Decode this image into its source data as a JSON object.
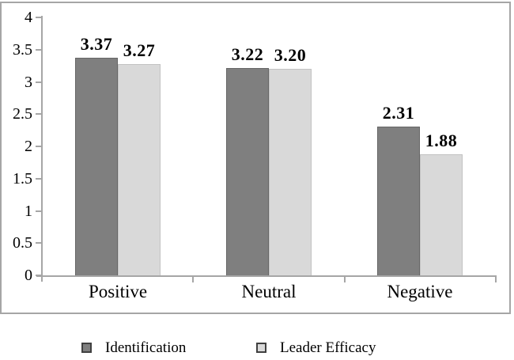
{
  "chart_data": {
    "type": "bar",
    "title": "",
    "xlabel": "",
    "ylabel": "",
    "categories": [
      "Positive",
      "Neutral",
      "Negative"
    ],
    "series": [
      {
        "name": "Identification",
        "values": [
          3.37,
          3.22,
          2.31
        ],
        "value_labels": [
          "3.37",
          "3.22",
          "2.31"
        ],
        "color": "#7f7f7f",
        "border_color": "#666666"
      },
      {
        "name": "Leader Efficacy",
        "values": [
          3.27,
          3.2,
          1.88
        ],
        "value_labels": [
          "3.27",
          "3.20",
          "1.88"
        ],
        "color": "#d9d9d9",
        "border_color": "#c2c2c2"
      }
    ],
    "ylim": [
      0,
      4
    ],
    "ytick_step": 0.5,
    "yticks": [
      {
        "v": 4,
        "label": "4"
      },
      {
        "v": 3.5,
        "label": "3.5"
      },
      {
        "v": 3,
        "label": "3"
      },
      {
        "v": 2.5,
        "label": "2.5"
      },
      {
        "v": 2,
        "label": "2"
      },
      {
        "v": 1.5,
        "label": "1.5"
      },
      {
        "v": 1,
        "label": "1"
      },
      {
        "v": 0.5,
        "label": "0.5"
      },
      {
        "v": 0,
        "label": "0"
      }
    ],
    "grid": false,
    "legend_position": "bottom",
    "value_labels_shown": true
  },
  "colors": {
    "background": "#ffffff",
    "frame_border": "#a6a6a6",
    "axis": "#a6a6a6",
    "text": "#000000",
    "series_dark": "#7f7f7f",
    "series_light": "#d9d9d9"
  }
}
